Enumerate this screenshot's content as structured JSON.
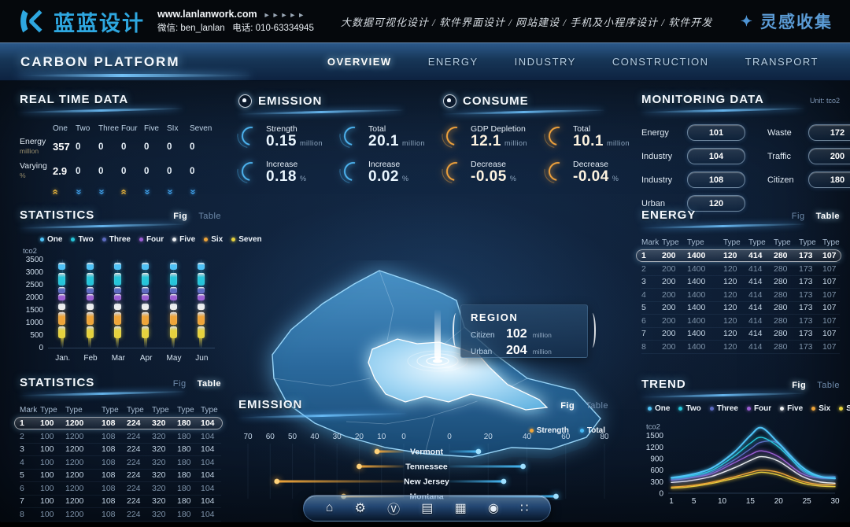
{
  "brand": {
    "logo_text": "蓝蓝设计",
    "site": "www.lanlanwork.com",
    "site_arrows": "►►►►►",
    "wechat": "微信: ben_lanlan",
    "phone": "电话: 010-63334945",
    "services": "大数据可视化设计 / 软件界面设计 / 网站建设 / 手机及小程序设计 / 软件开发",
    "collect": "灵感收集",
    "accent": "#2ea7e0"
  },
  "nav": {
    "title": "CARBON PLATFORM",
    "items": [
      {
        "label": "OVERVIEW",
        "active": true
      },
      {
        "label": "ENERGY",
        "active": false
      },
      {
        "label": "INDUSTRY",
        "active": false
      },
      {
        "label": "CONSTRUCTION",
        "active": false
      },
      {
        "label": "TRANSPORT",
        "active": false
      }
    ]
  },
  "real_time": {
    "title": "REAL TIME DATA",
    "columns": [
      "One",
      "Two",
      "Three",
      "Four",
      "Five",
      "SIx",
      "Seven"
    ],
    "rows": [
      {
        "label": "Energy",
        "unit": "million",
        "values": [
          "357",
          "0",
          "0",
          "0",
          "0",
          "0",
          "0"
        ]
      },
      {
        "label": "Varying",
        "unit": "%",
        "values": [
          "2.9",
          "0",
          "0",
          "0",
          "0",
          "0",
          "0"
        ]
      }
    ],
    "trend_arrows": [
      "up",
      "down",
      "down",
      "up",
      "down",
      "down",
      "down"
    ],
    "up_color": "#e8b43c",
    "down_color": "#3f9fe8"
  },
  "statistics_fig": {
    "title": "STATISTICS",
    "toggle": {
      "fig": "Fig",
      "table": "Table",
      "active": "fig"
    }
  },
  "statistics_table": {
    "title": "STATISTICS",
    "toggle": {
      "fig": "Fig",
      "table": "Table",
      "active": "table"
    },
    "headers": [
      "Mark",
      "Type",
      "Type",
      "Type",
      "Type",
      "Type",
      "Type",
      "Type"
    ],
    "rows": [
      [
        "1",
        "100",
        "1200",
        "108",
        "224",
        "320",
        "180",
        "104"
      ],
      [
        "2",
        "100",
        "1200",
        "108",
        "224",
        "320",
        "180",
        "104"
      ],
      [
        "3",
        "100",
        "1200",
        "108",
        "224",
        "320",
        "180",
        "104"
      ],
      [
        "4",
        "100",
        "1200",
        "108",
        "224",
        "320",
        "180",
        "104"
      ],
      [
        "5",
        "100",
        "1200",
        "108",
        "224",
        "320",
        "180",
        "104"
      ],
      [
        "6",
        "100",
        "1200",
        "108",
        "224",
        "320",
        "180",
        "104"
      ],
      [
        "7",
        "100",
        "1200",
        "108",
        "224",
        "320",
        "180",
        "104"
      ],
      [
        "8",
        "100",
        "1200",
        "108",
        "224",
        "320",
        "180",
        "104"
      ]
    ],
    "highlight_row": 0
  },
  "emission_stats": {
    "title": "EMISSION",
    "accent": "#4db4f0",
    "value_color": "#eaf6ff",
    "items": [
      {
        "label": "Strength",
        "value": "0.15",
        "unit": "million"
      },
      {
        "label": "Total",
        "value": "20.1",
        "unit": "million"
      },
      {
        "label": "Increase",
        "value": "0.18",
        "unit": "%"
      },
      {
        "label": "Increase",
        "value": "0.02",
        "unit": "%"
      }
    ]
  },
  "consume_stats": {
    "title": "CONSUME",
    "accent": "#f0a23c",
    "value_color": "#fdf3e0",
    "items": [
      {
        "label": "GDP Depletion",
        "value": "12.1",
        "unit": "million"
      },
      {
        "label": "Total",
        "value": "10.1",
        "unit": "million"
      },
      {
        "label": "Decrease",
        "value": "-0.05",
        "unit": "%"
      },
      {
        "label": "Decrease",
        "value": "-0.04",
        "unit": "%"
      }
    ]
  },
  "map_tooltip": {
    "title": "REGION",
    "rows": [
      {
        "label": "Citizen",
        "value": "102",
        "unit": "million"
      },
      {
        "label": "Urban",
        "value": "204",
        "unit": "million"
      }
    ]
  },
  "monitoring": {
    "title": "MONITORING DATA",
    "unit": "Unit: tco2",
    "left": [
      {
        "label": "Energy",
        "value": "101"
      },
      {
        "label": "Industry",
        "value": "104"
      },
      {
        "label": "Industry",
        "value": "108"
      },
      {
        "label": "Urban",
        "value": "120"
      }
    ],
    "right": [
      {
        "label": "Waste",
        "value": "172"
      },
      {
        "label": "Traffic",
        "value": "200"
      },
      {
        "label": "Citizen",
        "value": "180"
      }
    ]
  },
  "energy_table": {
    "title": "ENERGY",
    "toggle": {
      "fig": "Fig",
      "table": "Table",
      "active": "table"
    },
    "headers": [
      "Mark",
      "Type",
      "Type",
      "Type",
      "Type",
      "Type",
      "Type",
      "Type"
    ],
    "rows": [
      [
        "1",
        "200",
        "1400",
        "120",
        "414",
        "280",
        "173",
        "107"
      ],
      [
        "2",
        "200",
        "1400",
        "120",
        "414",
        "280",
        "173",
        "107"
      ],
      [
        "3",
        "200",
        "1400",
        "120",
        "414",
        "280",
        "173",
        "107"
      ],
      [
        "4",
        "200",
        "1400",
        "120",
        "414",
        "280",
        "173",
        "107"
      ],
      [
        "5",
        "200",
        "1400",
        "120",
        "414",
        "280",
        "173",
        "107"
      ],
      [
        "6",
        "200",
        "1400",
        "120",
        "414",
        "280",
        "173",
        "107"
      ],
      [
        "7",
        "200",
        "1400",
        "120",
        "414",
        "280",
        "173",
        "107"
      ],
      [
        "8",
        "200",
        "1400",
        "120",
        "414",
        "280",
        "173",
        "107"
      ]
    ],
    "highlight_row": 0
  },
  "trend_section": {
    "title": "TREND",
    "toggle": {
      "fig": "Fig",
      "table": "Table",
      "active": "fig"
    }
  },
  "emission_section": {
    "title": "EMISSION",
    "toggle": {
      "fig": "Fig",
      "table": "Table",
      "active": "fig"
    }
  },
  "dock": {
    "icons": [
      {
        "name": "home-icon",
        "glyph": "⌂"
      },
      {
        "name": "gear-icon",
        "glyph": "⚙"
      },
      {
        "name": "medal-icon",
        "glyph": "Ⓥ"
      },
      {
        "name": "building-icon",
        "glyph": "▤"
      },
      {
        "name": "chart-icon",
        "glyph": "▦"
      },
      {
        "name": "camera-icon",
        "glyph": "◉"
      },
      {
        "name": "apps-icon",
        "glyph": "∷"
      }
    ]
  },
  "chart_data": [
    {
      "id": "statistics",
      "type": "bar",
      "title": "STATISTICS",
      "ylabel": "tco2",
      "ylim": [
        0,
        3500
      ],
      "yticks": [
        3500,
        3000,
        2500,
        2000,
        1500,
        1000,
        500,
        0
      ],
      "categories": [
        "Jan.",
        "Feb",
        "Mar",
        "Apr",
        "May",
        "Jun"
      ],
      "legend": [
        "One",
        "Two",
        "Three",
        "Four",
        "Five",
        "Six",
        "Seven"
      ],
      "colors": [
        "#4fc3f7",
        "#26c6da",
        "#5c6bc0",
        "#9c5fd4",
        "#eceff1",
        "#efa53a",
        "#e6d23e"
      ],
      "series": [
        {
          "name": "One",
          "band": [
            3080,
            3360
          ]
        },
        {
          "name": "Two",
          "band": [
            2480,
            2980
          ]
        },
        {
          "name": "Three",
          "band": [
            2160,
            2420
          ]
        },
        {
          "name": "Four",
          "band": [
            1880,
            2120
          ]
        },
        {
          "name": "Five",
          "band": [
            1500,
            1760
          ]
        },
        {
          "name": "Six",
          "band": [
            920,
            1420
          ]
        },
        {
          "name": "Seven",
          "band": [
            380,
            830
          ],
          "fade_to": 0
        }
      ]
    },
    {
      "id": "emission",
      "type": "bar",
      "orientation": "tornado",
      "title": "EMISSION",
      "categories": [
        "Vermont",
        "Tennessee",
        "New Jersey",
        "Montana"
      ],
      "series": [
        {
          "name": "Strength",
          "color": "#efa53a",
          "values": [
            12,
            20,
            57,
            27
          ]
        },
        {
          "name": "Total",
          "color": "#46b9f5",
          "values": [
            15,
            38,
            28,
            55
          ]
        }
      ],
      "left_ticks": [
        70,
        60,
        50,
        40,
        30,
        20,
        10,
        0
      ],
      "right_ticks": [
        0,
        20,
        40,
        60,
        80
      ],
      "left_max": 70,
      "right_max": 80
    },
    {
      "id": "trend",
      "type": "line",
      "title": "TREND",
      "ylabel": "tco2",
      "ylim": [
        0,
        1800
      ],
      "yticks": [
        1500,
        1200,
        900,
        600,
        300,
        0
      ],
      "x": [
        1,
        4,
        8,
        12,
        15,
        17,
        20,
        24,
        27,
        30
      ],
      "xticks": [
        1,
        5,
        10,
        15,
        20,
        25,
        30
      ],
      "xlim": [
        1,
        30
      ],
      "legend": [
        "One",
        "Two",
        "Three",
        "Four",
        "Five",
        "Six",
        "Seven"
      ],
      "colors": [
        "#4fc3f7",
        "#26c6da",
        "#5c6bc0",
        "#9c5fd4",
        "#eceff1",
        "#efa53a",
        "#e6d23e"
      ],
      "series": [
        {
          "name": "One",
          "values": [
            400,
            470,
            640,
            1050,
            1500,
            1700,
            1300,
            700,
            450,
            380
          ]
        },
        {
          "name": "Two",
          "values": [
            390,
            440,
            580,
            950,
            1300,
            1450,
            1200,
            640,
            430,
            400
          ]
        },
        {
          "name": "Three",
          "values": [
            360,
            410,
            540,
            850,
            1150,
            1330,
            1280,
            600,
            430,
            430
          ]
        },
        {
          "name": "Four",
          "values": [
            340,
            390,
            500,
            780,
            1000,
            1100,
            950,
            520,
            400,
            390
          ]
        },
        {
          "name": "Five",
          "values": [
            280,
            320,
            430,
            650,
            850,
            950,
            830,
            450,
            300,
            260
          ]
        },
        {
          "name": "Six",
          "values": [
            160,
            190,
            280,
            420,
            540,
            600,
            540,
            320,
            230,
            220
          ]
        },
        {
          "name": "Seven",
          "values": [
            130,
            160,
            250,
            380,
            480,
            545,
            470,
            270,
            190,
            170
          ]
        }
      ]
    }
  ]
}
